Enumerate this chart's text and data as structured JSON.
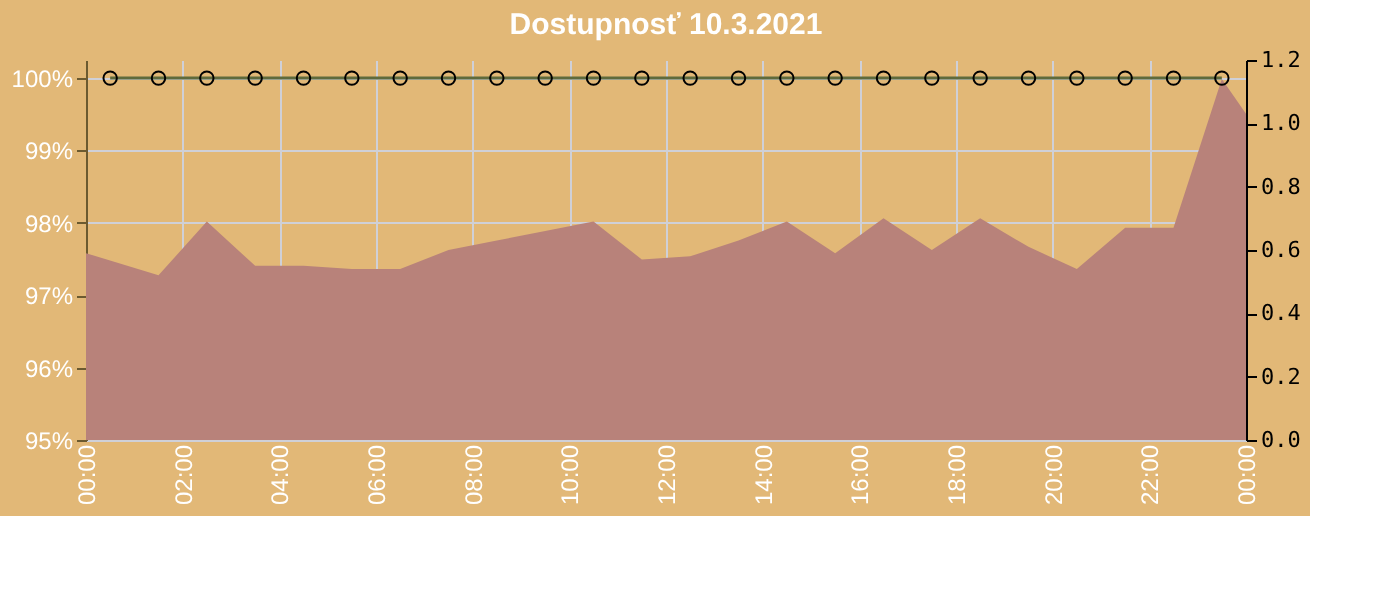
{
  "chart_data": {
    "type": "area",
    "title": "Dostupnosť 10.3.2021",
    "xlim": [
      0,
      24
    ],
    "xticks": [
      {
        "value": 0,
        "label": "00:00"
      },
      {
        "value": 2,
        "label": "02:00"
      },
      {
        "value": 4,
        "label": "04:00"
      },
      {
        "value": 6,
        "label": "06:00"
      },
      {
        "value": 8,
        "label": "08:00"
      },
      {
        "value": 10,
        "label": "10:00"
      },
      {
        "value": 12,
        "label": "12:00"
      },
      {
        "value": 14,
        "label": "14:00"
      },
      {
        "value": 16,
        "label": "16:00"
      },
      {
        "value": 18,
        "label": "18:00"
      },
      {
        "value": 20,
        "label": "20:00"
      },
      {
        "value": 22,
        "label": "22:00"
      },
      {
        "value": 24,
        "label": "00:00"
      }
    ],
    "ylim": [
      95,
      100.25
    ],
    "yticks": [
      {
        "value": 95,
        "label": "95%"
      },
      {
        "value": 96,
        "label": "96%"
      },
      {
        "value": 97,
        "label": "97%"
      },
      {
        "value": 98,
        "label": "98%"
      },
      {
        "value": 99,
        "label": "99%"
      },
      {
        "value": 100,
        "label": "100%"
      }
    ],
    "y2lim": [
      0,
      1.2
    ],
    "y2ticks": [
      {
        "value": 0,
        "label": "0.0"
      },
      {
        "value": 0.2,
        "label": "0.2"
      },
      {
        "value": 0.4,
        "label": "0.4"
      },
      {
        "value": 0.6,
        "label": "0.6"
      },
      {
        "value": 0.8,
        "label": "0.8"
      },
      {
        "value": 1,
        "label": "1.0"
      },
      {
        "value": 1.2,
        "label": "1.2"
      }
    ],
    "grid": true,
    "series": [
      {
        "axis": "y2",
        "color": "#b8827a",
        "x": [
          0,
          1.5,
          2.5,
          3.5,
          4.5,
          5.5,
          6.5,
          7.5,
          8.5,
          9.5,
          10.5,
          11.5,
          12.5,
          13.5,
          14.5,
          15.5,
          16.5,
          17.5,
          18.5,
          19.5,
          20.5,
          21.5,
          22.5,
          23.5,
          24
        ],
        "values": [
          0.59,
          0.52,
          0.69,
          0.55,
          0.55,
          0.54,
          0.54,
          0.6,
          0.63,
          0.66,
          0.69,
          0.57,
          0.58,
          0.63,
          0.69,
          0.59,
          0.7,
          0.6,
          0.7,
          0.61,
          0.54,
          0.67,
          0.67,
          1.14,
          1.03
        ]
      },
      {
        "type": "line",
        "axis": "y",
        "color": "#5f6a3c",
        "marker": "circle",
        "line_style": "solid",
        "x": [
          0.5,
          1.5,
          2.5,
          3.5,
          4.5,
          5.5,
          6.5,
          7.5,
          8.5,
          9.5,
          10.5,
          11.5,
          12.5,
          13.5,
          14.5,
          15.5,
          16.5,
          17.5,
          18.5,
          19.5,
          20.5,
          21.5,
          22.5,
          23.5
        ],
        "values": [
          100,
          100,
          100,
          100,
          100,
          100,
          100,
          100,
          100,
          100,
          100,
          100,
          100,
          100,
          100,
          100,
          100,
          100,
          100,
          100,
          100,
          100,
          100,
          100
        ]
      }
    ]
  }
}
